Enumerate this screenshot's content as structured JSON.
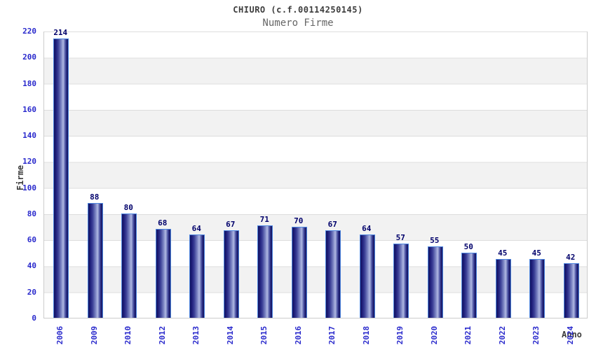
{
  "chart_data": {
    "type": "bar",
    "title": "CHIURO (c.f.00114250145)",
    "subtitle": "Numero Firme",
    "xlabel": "Anno",
    "ylabel": "Firme",
    "categories": [
      "2006",
      "2009",
      "2010",
      "2012",
      "2013",
      "2014",
      "2015",
      "2016",
      "2017",
      "2018",
      "2019",
      "2020",
      "2021",
      "2022",
      "2023",
      "2024"
    ],
    "values": [
      214,
      88,
      80,
      68,
      64,
      67,
      71,
      70,
      67,
      64,
      57,
      55,
      50,
      45,
      45,
      42
    ],
    "yticks": [
      0,
      20,
      40,
      60,
      80,
      100,
      120,
      140,
      160,
      180,
      200,
      220
    ],
    "ylim": [
      0,
      220
    ],
    "grid": "alternating-horizontal-bands",
    "legend": "none",
    "colors": {
      "bar_dark": "#14145e",
      "bar_highlight": "#b0b8e2",
      "bar_border": "#4d86e0",
      "value_label": "#00006b",
      "tick_label": "#2929cc",
      "title": "#3c3c3c",
      "subtitle": "#666666",
      "band_gray": "#f2f2f2",
      "axis_line": "#cccccc",
      "background": "#ffffff"
    }
  }
}
